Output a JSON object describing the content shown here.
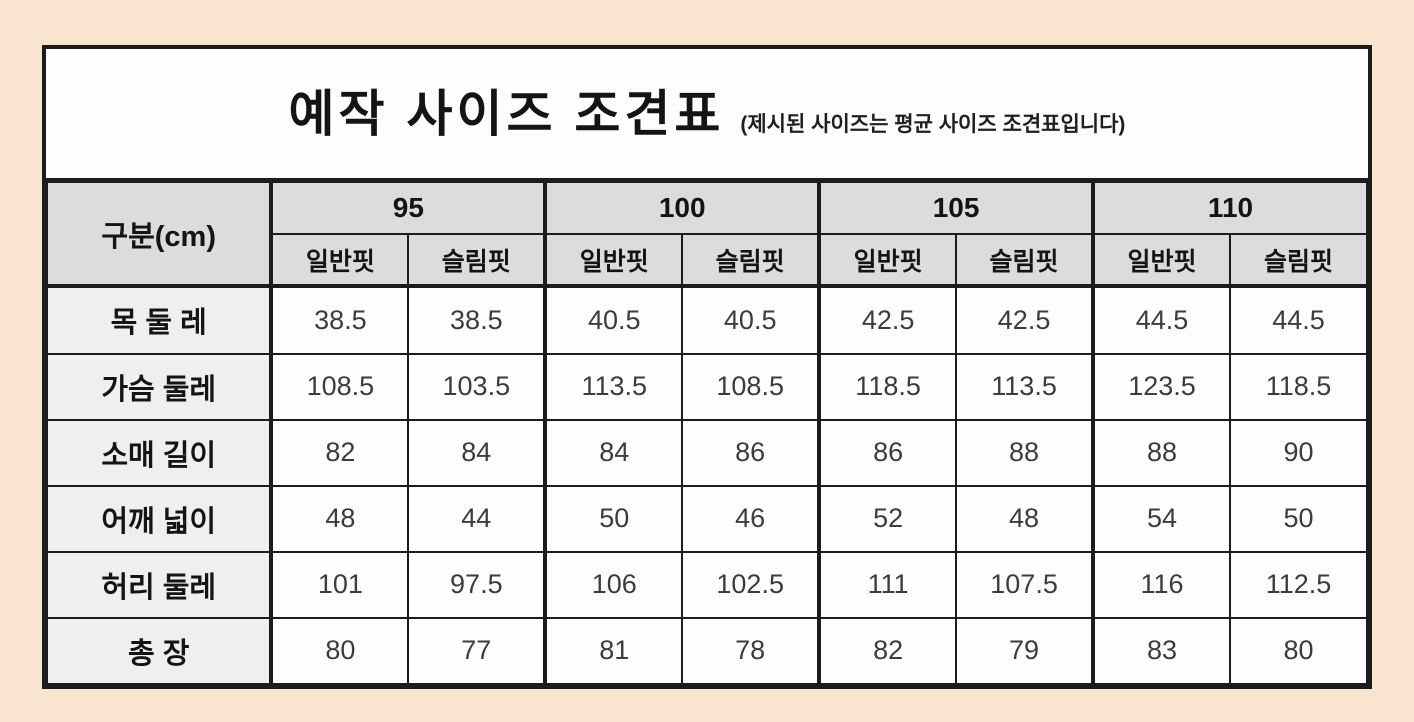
{
  "colors": {
    "page_background": "#f9e4d0",
    "table_background": "#fdfdfd",
    "header_fill": "#dcdcdc",
    "row_label_fill": "#efefef",
    "border": "#1c1c1c"
  },
  "chart_data": {
    "type": "table",
    "title": "예작 사이즈 조견표",
    "subtitle": "(제시된 사이즈는 평균 사이즈 조견표입니다)",
    "unit": "cm",
    "corner_header": "구분(cm)",
    "size_groups": [
      "95",
      "100",
      "105",
      "110"
    ],
    "fit_columns": [
      "일반핏",
      "슬림핏"
    ],
    "rows": [
      {
        "label": "목 둘 레",
        "values": [
          "38.5",
          "38.5",
          "40.5",
          "40.5",
          "42.5",
          "42.5",
          "44.5",
          "44.5"
        ]
      },
      {
        "label": "가슴 둘레",
        "values": [
          "108.5",
          "103.5",
          "113.5",
          "108.5",
          "118.5",
          "113.5",
          "123.5",
          "118.5"
        ]
      },
      {
        "label": "소매 길이",
        "values": [
          "82",
          "84",
          "84",
          "86",
          "86",
          "88",
          "88",
          "90"
        ]
      },
      {
        "label": "어깨 넓이",
        "values": [
          "48",
          "44",
          "50",
          "46",
          "52",
          "48",
          "54",
          "50"
        ]
      },
      {
        "label": "허리 둘레",
        "values": [
          "101",
          "97.5",
          "106",
          "102.5",
          "111",
          "107.5",
          "116",
          "112.5"
        ]
      },
      {
        "label": "총 장",
        "values": [
          "80",
          "77",
          "81",
          "78",
          "82",
          "79",
          "83",
          "80"
        ]
      }
    ]
  }
}
